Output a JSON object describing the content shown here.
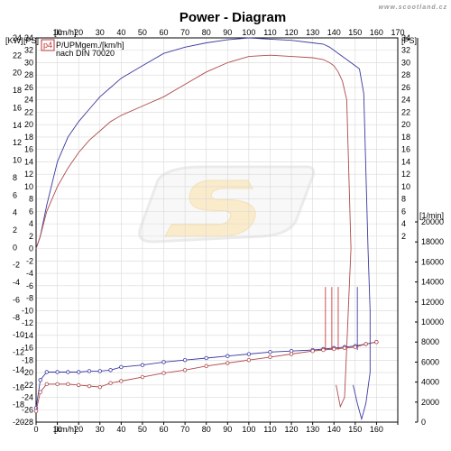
{
  "watermark": "www.scootland.cz",
  "chart_data": {
    "type": "line",
    "title": "Power - Diagram",
    "legend": {
      "badge": "p4",
      "line1": "P/UPMgem./[km/h]",
      "line2": "nach DIN 70020"
    },
    "grid": true,
    "x_axis": {
      "unit": "[km/h]",
      "min": 0,
      "max": 170,
      "ticks": [
        0,
        10,
        20,
        30,
        40,
        50,
        60,
        70,
        80,
        90,
        100,
        110,
        120,
        130,
        140,
        150,
        160,
        170
      ]
    },
    "y_left_ps": {
      "unit": "[PS]",
      "min": -28,
      "max": 34,
      "ticks": [
        34,
        32,
        30,
        28,
        26,
        24,
        22,
        20,
        18,
        16,
        14,
        12,
        10,
        8,
        6,
        4,
        2,
        0,
        -2,
        -4,
        -6,
        -8,
        -10,
        -12,
        -14,
        -16,
        -18,
        -20,
        -22,
        -24,
        -26,
        -28
      ]
    },
    "y_left_kw": {
      "unit": "[KW]",
      "min": -20,
      "max": 24,
      "ticks": [
        24,
        22,
        20,
        18,
        16,
        14,
        12,
        10,
        8,
        6,
        4,
        2,
        0,
        -2,
        -4,
        -6,
        -8,
        -10,
        -12,
        -14,
        -16,
        -18,
        -20
      ]
    },
    "y_right_ps": {
      "unit": "[PS]",
      "ticks": [
        34,
        32,
        30,
        28,
        26,
        24,
        22,
        20,
        18,
        16,
        14,
        12,
        10,
        8,
        6,
        4,
        2
      ]
    },
    "y_right_rpm": {
      "unit": "[1/min]",
      "min": 0,
      "max": 20000,
      "ticks": [
        20000,
        18000,
        16000,
        14000,
        12000,
        10000,
        8000,
        6000,
        4000,
        2000,
        0
      ]
    },
    "series": [
      {
        "color": "#3a3aa0",
        "axis": "ps",
        "x": [
          0,
          2,
          5,
          10,
          15,
          20,
          25,
          30,
          35,
          40,
          50,
          60,
          70,
          80,
          90,
          100,
          110,
          120,
          130,
          135,
          138,
          140,
          142,
          144,
          146,
          148,
          150,
          152,
          154,
          156
        ],
        "y": [
          0,
          2,
          7,
          14,
          18,
          20.5,
          22.5,
          24.5,
          26,
          27.5,
          29.5,
          31.5,
          32.5,
          33.2,
          33.7,
          34,
          33.8,
          33.6,
          33.2,
          33,
          32.5,
          32,
          31.5,
          31,
          30.5,
          30,
          29.5,
          29,
          25,
          0
        ]
      },
      {
        "color": "#b04a4a",
        "axis": "ps",
        "x": [
          0,
          2,
          5,
          10,
          15,
          20,
          25,
          30,
          35,
          40,
          50,
          60,
          70,
          80,
          90,
          100,
          110,
          120,
          130,
          135,
          138,
          140,
          142,
          144,
          146,
          148
        ],
        "y": [
          0,
          2,
          6,
          10,
          13,
          15.5,
          17.5,
          19,
          20.5,
          21.5,
          23,
          24.5,
          26.5,
          28.5,
          30,
          31,
          31.2,
          31,
          30.8,
          30.5,
          30,
          29.5,
          28.5,
          27,
          24,
          0
        ]
      },
      {
        "color": "#3a3aa0",
        "axis": "rpm",
        "marker": "circle",
        "x": [
          0,
          2,
          5,
          10,
          15,
          20,
          25,
          30,
          35,
          40,
          50,
          60,
          70,
          80,
          90,
          100,
          110,
          120,
          130,
          135,
          140,
          145,
          150,
          155,
          160
        ],
        "y": [
          1400,
          4200,
          5000,
          5000,
          5000,
          5000,
          5100,
          5100,
          5200,
          5500,
          5700,
          6000,
          6200,
          6400,
          6600,
          6800,
          7000,
          7100,
          7200,
          7300,
          7400,
          7500,
          7600,
          7800,
          8000
        ]
      },
      {
        "color": "#b04a4a",
        "axis": "rpm",
        "marker": "circle",
        "x": [
          0,
          2,
          5,
          10,
          15,
          20,
          25,
          30,
          35,
          40,
          50,
          60,
          70,
          80,
          90,
          100,
          110,
          120,
          130,
          135,
          140,
          145,
          150,
          155,
          160
        ],
        "y": [
          1100,
          3000,
          3800,
          3800,
          3800,
          3700,
          3600,
          3500,
          3900,
          4100,
          4500,
          4900,
          5200,
          5600,
          5900,
          6200,
          6500,
          6800,
          7100,
          7200,
          7300,
          7400,
          7500,
          7800,
          8000
        ]
      }
    ],
    "spikes": [
      {
        "x": 136,
        "color": "#c44040"
      },
      {
        "x": 139,
        "color": "#c44040"
      },
      {
        "x": 142,
        "color": "#c44040"
      },
      {
        "x": 151,
        "color": "#4040a0"
      }
    ]
  }
}
